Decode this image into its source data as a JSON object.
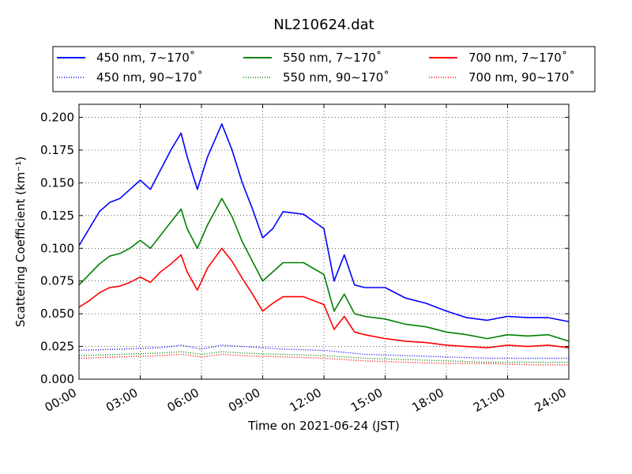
{
  "chart_data": {
    "type": "line",
    "title": "NL210624.dat",
    "xlabel": "Time on 2021-06-24 (JST)",
    "ylabel": "Scattering Coefficient (km⁻¹)",
    "x_unit": "hours",
    "xlim": [
      0,
      24
    ],
    "ylim": [
      0,
      0.21
    ],
    "grid": true,
    "legend_position": "top-outside",
    "x_ticks": [
      {
        "value": 0,
        "label": "00:00"
      },
      {
        "value": 3,
        "label": "03:00"
      },
      {
        "value": 6,
        "label": "06:00"
      },
      {
        "value": 9,
        "label": "09:00"
      },
      {
        "value": 12,
        "label": "12:00"
      },
      {
        "value": 15,
        "label": "15:00"
      },
      {
        "value": 18,
        "label": "18:00"
      },
      {
        "value": 21,
        "label": "21:00"
      },
      {
        "value": 24,
        "label": "24:00"
      }
    ],
    "y_ticks": [
      {
        "value": 0.0,
        "label": "0.000"
      },
      {
        "value": 0.025,
        "label": "0.025"
      },
      {
        "value": 0.05,
        "label": "0.050"
      },
      {
        "value": 0.075,
        "label": "0.075"
      },
      {
        "value": 0.1,
        "label": "0.100"
      },
      {
        "value": 0.125,
        "label": "0.125"
      },
      {
        "value": 0.15,
        "label": "0.150"
      },
      {
        "value": 0.175,
        "label": "0.175"
      },
      {
        "value": 0.2,
        "label": "0.200"
      }
    ],
    "series": [
      {
        "name": "450 nm, 7∼170˚",
        "color": "#0000ff",
        "style": "solid",
        "x": [
          0,
          0.5,
          1,
          1.5,
          2,
          2.5,
          3,
          3.5,
          4,
          4.5,
          5,
          5.3,
          5.8,
          6.3,
          7,
          7.5,
          8,
          8.5,
          9,
          9.5,
          10,
          11,
          12,
          12.5,
          13,
          13.5,
          14,
          15,
          16,
          17,
          18,
          19,
          20,
          21,
          22,
          23,
          24
        ],
        "y": [
          0.102,
          0.115,
          0.128,
          0.135,
          0.138,
          0.145,
          0.152,
          0.145,
          0.16,
          0.175,
          0.188,
          0.17,
          0.145,
          0.17,
          0.195,
          0.175,
          0.15,
          0.13,
          0.108,
          0.115,
          0.128,
          0.126,
          0.115,
          0.075,
          0.095,
          0.072,
          0.07,
          0.07,
          0.062,
          0.058,
          0.052,
          0.047,
          0.045,
          0.048,
          0.047,
          0.047,
          0.044
        ]
      },
      {
        "name": "550 nm, 7∼170˚",
        "color": "#008000",
        "style": "solid",
        "x": [
          0,
          0.5,
          1,
          1.5,
          2,
          2.5,
          3,
          3.5,
          4,
          4.5,
          5,
          5.3,
          5.8,
          6.3,
          7,
          7.5,
          8,
          8.5,
          9,
          9.5,
          10,
          11,
          12,
          12.5,
          13,
          13.5,
          14,
          15,
          16,
          17,
          18,
          19,
          20,
          21,
          22,
          23,
          24
        ],
        "y": [
          0.072,
          0.08,
          0.088,
          0.094,
          0.096,
          0.1,
          0.106,
          0.1,
          0.11,
          0.12,
          0.13,
          0.115,
          0.1,
          0.118,
          0.138,
          0.124,
          0.105,
          0.09,
          0.075,
          0.082,
          0.089,
          0.089,
          0.08,
          0.052,
          0.065,
          0.05,
          0.048,
          0.046,
          0.042,
          0.04,
          0.036,
          0.034,
          0.031,
          0.034,
          0.033,
          0.034,
          0.029
        ]
      },
      {
        "name": "700 nm, 7∼170˚",
        "color": "#ff0000",
        "style": "solid",
        "x": [
          0,
          0.5,
          1,
          1.5,
          2,
          2.5,
          3,
          3.5,
          4,
          4.5,
          5,
          5.3,
          5.8,
          6.3,
          7,
          7.5,
          8,
          8.5,
          9,
          9.5,
          10,
          11,
          12,
          12.5,
          13,
          13.5,
          14,
          15,
          16,
          17,
          18,
          19,
          20,
          21,
          22,
          23,
          24
        ],
        "y": [
          0.055,
          0.06,
          0.066,
          0.07,
          0.071,
          0.074,
          0.078,
          0.074,
          0.082,
          0.088,
          0.095,
          0.082,
          0.068,
          0.085,
          0.1,
          0.09,
          0.077,
          0.065,
          0.052,
          0.058,
          0.063,
          0.063,
          0.057,
          0.038,
          0.048,
          0.036,
          0.034,
          0.031,
          0.029,
          0.028,
          0.026,
          0.025,
          0.024,
          0.026,
          0.025,
          0.026,
          0.024
        ]
      },
      {
        "name": "450 nm, 90∼170˚",
        "color": "#0000ff",
        "style": "dotted",
        "x": [
          0,
          2,
          4,
          5,
          6,
          7,
          8,
          10,
          12,
          14,
          16,
          18,
          20,
          22,
          24
        ],
        "y": [
          0.022,
          0.023,
          0.024,
          0.026,
          0.023,
          0.026,
          0.025,
          0.023,
          0.022,
          0.019,
          0.018,
          0.017,
          0.016,
          0.016,
          0.016
        ]
      },
      {
        "name": "550 nm, 90∼170˚",
        "color": "#008000",
        "style": "dotted",
        "x": [
          0,
          2,
          4,
          5,
          6,
          7,
          8,
          10,
          12,
          14,
          16,
          18,
          20,
          22,
          24
        ],
        "y": [
          0.018,
          0.019,
          0.02,
          0.021,
          0.019,
          0.021,
          0.02,
          0.019,
          0.018,
          0.016,
          0.015,
          0.014,
          0.013,
          0.013,
          0.013
        ]
      },
      {
        "name": "700 nm, 90∼170˚",
        "color": "#ff0000",
        "style": "dotted",
        "x": [
          0,
          2,
          4,
          5,
          6,
          7,
          8,
          10,
          12,
          14,
          16,
          18,
          20,
          22,
          24
        ],
        "y": [
          0.016,
          0.017,
          0.018,
          0.019,
          0.017,
          0.019,
          0.018,
          0.017,
          0.016,
          0.014,
          0.013,
          0.012,
          0.012,
          0.011,
          0.011
        ]
      }
    ]
  }
}
